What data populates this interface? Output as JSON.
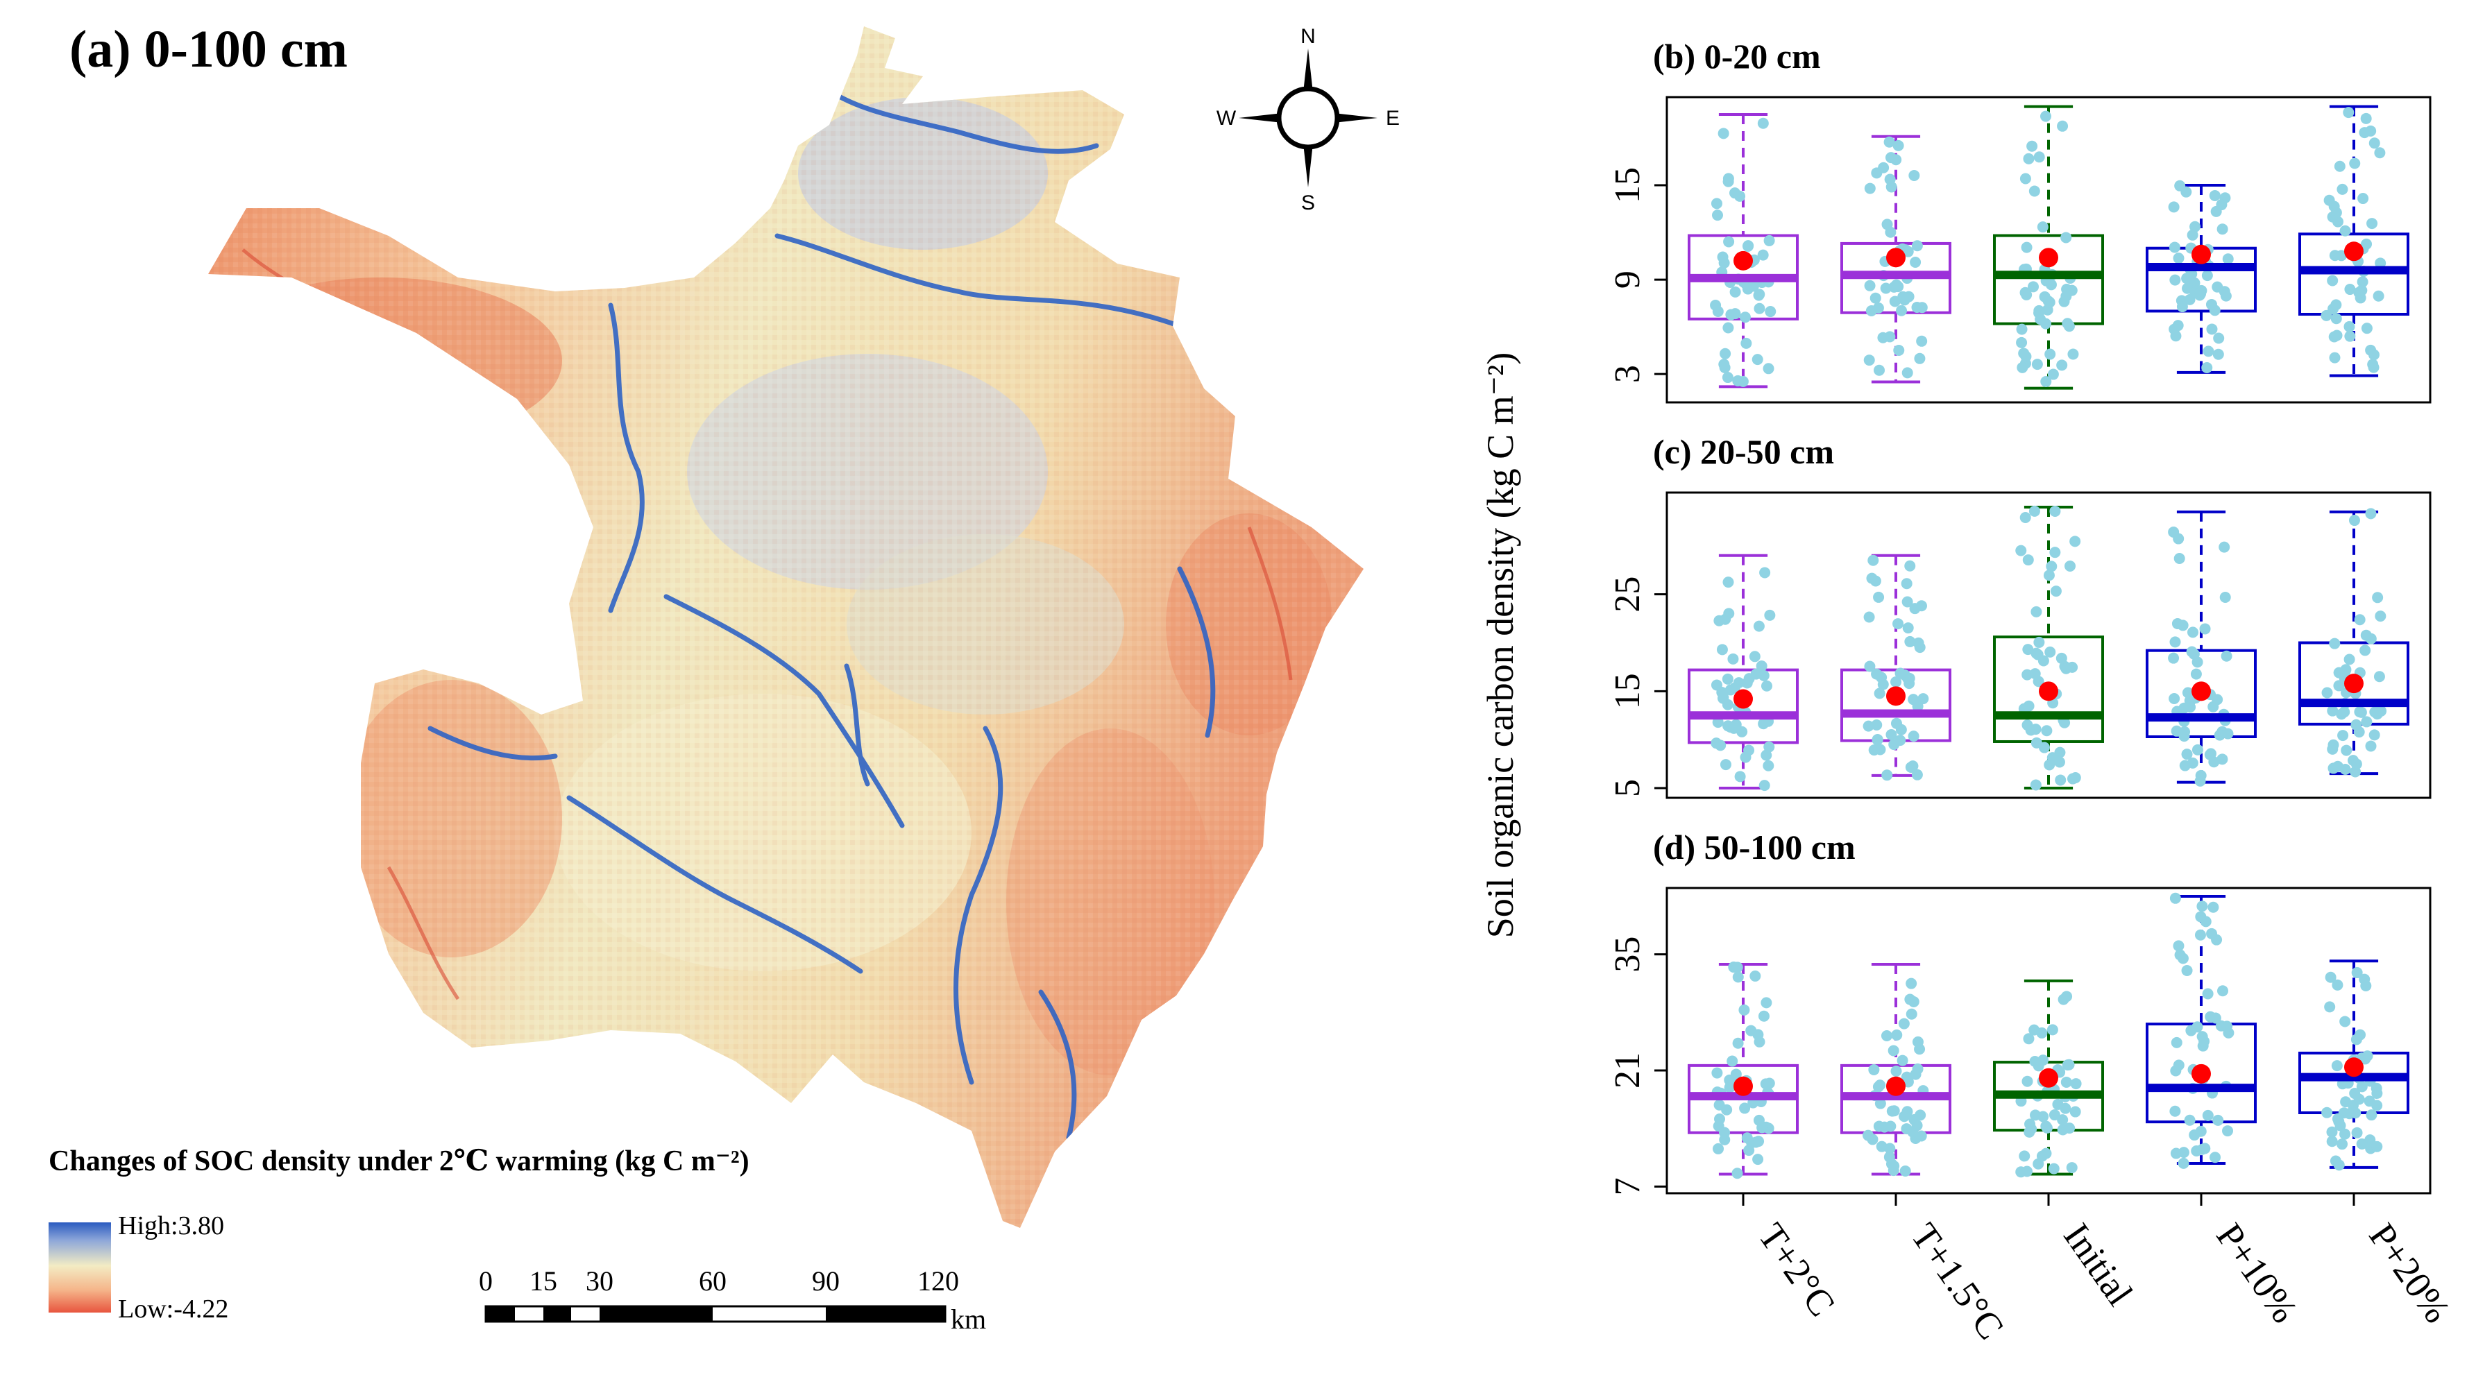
{
  "map": {
    "title": "(a) 0-100 cm",
    "compass": {
      "n": "N",
      "s": "S",
      "e": "E",
      "w": "W"
    },
    "legend": {
      "title": "Changes of SOC density under 2℃ warming (kg C m⁻²)",
      "high": "High:3.80",
      "low": "Low:-4.22",
      "colors": {
        "high": "#2a5bbf",
        "mid": "#f3ecc4",
        "low": "#e8553e"
      }
    },
    "scale": {
      "ticks": [
        "0",
        "15",
        "30",
        "60",
        "90",
        "120"
      ],
      "unit": "km"
    }
  },
  "colors": {
    "purple": "#9b30d9",
    "green": "#006400",
    "blue": "#0000c8",
    "points": "#8fd3e3",
    "mean": "#ff0000"
  },
  "chart_data": [
    {
      "type": "box",
      "title": "(b) 0-20 cm",
      "ylabel": "Soil organic carbon density (kg C m⁻²)",
      "yticks": [
        3,
        9,
        15
      ],
      "ylim": [
        1.2,
        20.6
      ],
      "categories": [
        "T+2°C",
        "T+1.5°C",
        "Initial",
        "P+10%",
        "P+20%"
      ],
      "boxes": [
        {
          "min": 2.2,
          "q1": 6.5,
          "median": 9.1,
          "q3": 11.8,
          "max": 19.5,
          "mean": 10.2
        },
        {
          "min": 2.5,
          "q1": 6.9,
          "median": 9.3,
          "q3": 11.3,
          "max": 18.1,
          "mean": 10.4
        },
        {
          "min": 2.1,
          "q1": 6.2,
          "median": 9.3,
          "q3": 11.8,
          "max": 20.0,
          "mean": 10.4
        },
        {
          "min": 3.1,
          "q1": 7.0,
          "median": 9.8,
          "q3": 11.0,
          "max": 15.0,
          "mean": 10.6
        },
        {
          "min": 2.9,
          "q1": 6.8,
          "median": 9.6,
          "q3": 11.9,
          "max": 20.0,
          "mean": 10.8
        }
      ]
    },
    {
      "type": "box",
      "title": "(c) 20-50 cm",
      "ylabel": "",
      "yticks": [
        5,
        15,
        25
      ],
      "ylim": [
        4,
        35.5
      ],
      "categories": [
        "T+2°C",
        "T+1.5°C",
        "Initial",
        "P+10%",
        "P+20%"
      ],
      "boxes": [
        {
          "min": 5.0,
          "q1": 9.7,
          "median": 12.5,
          "q3": 17.2,
          "max": 29.0,
          "mean": 14.2
        },
        {
          "min": 6.3,
          "q1": 9.9,
          "median": 12.7,
          "q3": 17.2,
          "max": 29.0,
          "mean": 14.5
        },
        {
          "min": 5.0,
          "q1": 9.8,
          "median": 12.5,
          "q3": 20.6,
          "max": 34.0,
          "mean": 15.0
        },
        {
          "min": 5.6,
          "q1": 10.3,
          "median": 12.3,
          "q3": 19.2,
          "max": 33.5,
          "mean": 15.0
        },
        {
          "min": 6.5,
          "q1": 11.6,
          "median": 13.8,
          "q3": 20.0,
          "max": 33.5,
          "mean": 15.8
        }
      ]
    },
    {
      "type": "box",
      "title": "(d) 50-100 cm",
      "ylabel": "",
      "yticks": [
        7,
        21,
        35
      ],
      "ylim": [
        6.2,
        43
      ],
      "categories": [
        "T+2°C",
        "T+1.5°C",
        "Initial",
        "P+10%",
        "P+20%"
      ],
      "boxes": [
        {
          "min": 8.5,
          "q1": 13.5,
          "median": 17.9,
          "q3": 21.6,
          "max": 33.8,
          "mean": 19.1
        },
        {
          "min": 8.5,
          "q1": 13.5,
          "median": 17.9,
          "q3": 21.6,
          "max": 33.8,
          "mean": 19.1
        },
        {
          "min": 8.5,
          "q1": 13.8,
          "median": 18.1,
          "q3": 22.0,
          "max": 31.8,
          "mean": 20.1
        },
        {
          "min": 9.8,
          "q1": 14.8,
          "median": 18.9,
          "q3": 26.6,
          "max": 42.0,
          "mean": 20.6
        },
        {
          "min": 9.3,
          "q1": 15.9,
          "median": 20.2,
          "q3": 23.1,
          "max": 34.2,
          "mean": 21.4
        }
      ]
    }
  ]
}
